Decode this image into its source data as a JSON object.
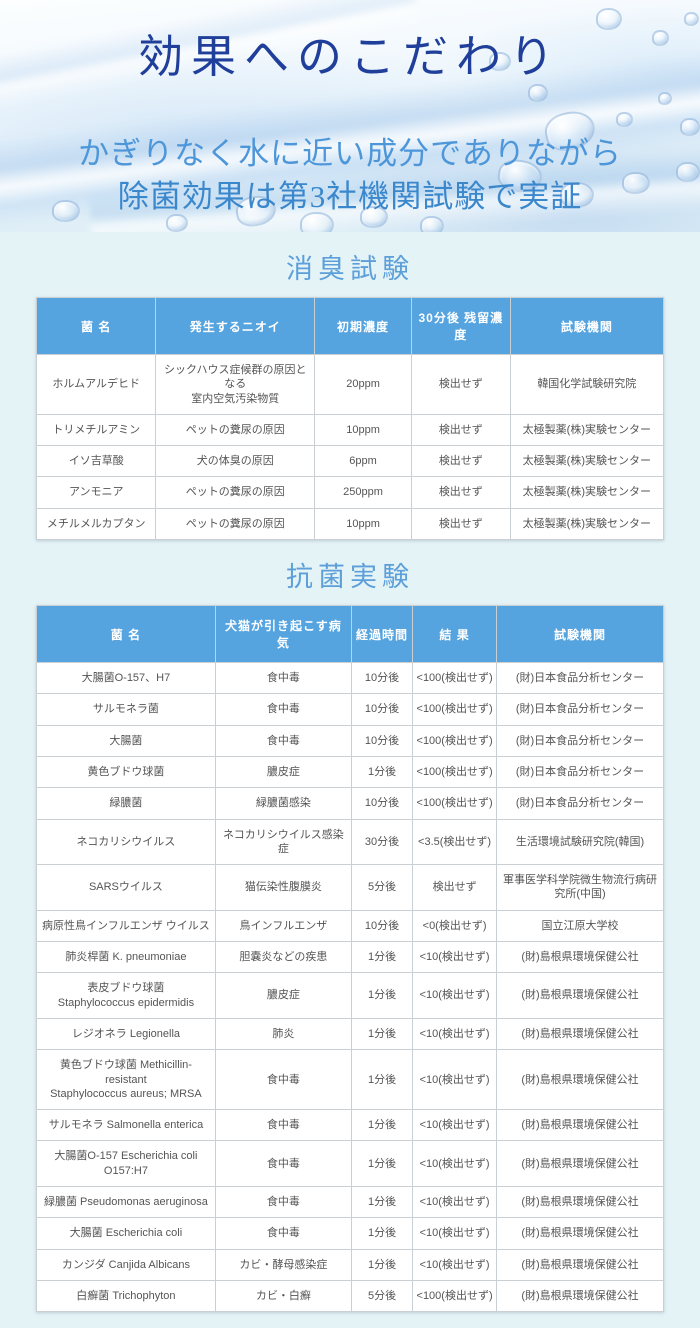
{
  "colors": {
    "header_bg": "#55a3df",
    "page_bg": "#e4f3f6",
    "title": "#1f3f9a",
    "subtitle1": "#4d96d9",
    "subtitle2": "#3b87cc",
    "section_heading": "#5c9fd9",
    "cell_text": "#555555",
    "border": "#c9cfd3"
  },
  "hero": {
    "title": "効果へのこだわり",
    "subtitle_line1": "かぎりなく水に近い成分でありながら",
    "subtitle_line2": "除菌効果は第3社機関試験で実証"
  },
  "deodorization": {
    "heading": "消臭試験",
    "table": {
      "headers": [
        "菌 名",
        "発生するニオイ",
        "初期濃度",
        "30分後 残留濃度",
        "試験機関"
      ],
      "rows": [
        [
          "ホルムアルデヒド",
          "シックハウス症候群の原因となる\n室内空気汚染物質",
          "20ppm",
          "検出せず",
          "韓国化学試験研究院"
        ],
        [
          "トリメチルアミン",
          "ペットの糞尿の原因",
          "10ppm",
          "検出せず",
          "太極製薬(株)実験センター"
        ],
        [
          "イソ吉草酸",
          "犬の体臭の原因",
          "6ppm",
          "検出せず",
          "太極製薬(株)実験センター"
        ],
        [
          "アンモニア",
          "ペットの糞尿の原因",
          "250ppm",
          "検出せず",
          "太極製薬(株)実験センター"
        ],
        [
          "メチルメルカプタン",
          "ペットの糞尿の原因",
          "10ppm",
          "検出せず",
          "太極製薬(株)実験センター"
        ]
      ]
    }
  },
  "antibacterial": {
    "heading": "抗菌実験",
    "table": {
      "headers": [
        "菌 名",
        "犬猫が引き起こす病気",
        "経過時間",
        "結 果",
        "試験機関"
      ],
      "rows": [
        [
          "大腸菌O-157、H7",
          "食中毒",
          "10分後",
          "<100(検出せず)",
          "(財)日本食品分析センター"
        ],
        [
          "サルモネラ菌",
          "食中毒",
          "10分後",
          "<100(検出せず)",
          "(財)日本食品分析センター"
        ],
        [
          "大腸菌",
          "食中毒",
          "10分後",
          "<100(検出せず)",
          "(財)日本食品分析センター"
        ],
        [
          "黄色ブドウ球菌",
          "膿皮症",
          "1分後",
          "<100(検出せず)",
          "(財)日本食品分析センター"
        ],
        [
          "緑膿菌",
          "緑膿菌感染",
          "10分後",
          "<100(検出せず)",
          "(財)日本食品分析センター"
        ],
        [
          "ネコカリシウイルス",
          "ネコカリシウイルス感染症",
          "30分後",
          "<3.5(検出せず)",
          "生活環境試験研究院(韓国)"
        ],
        [
          "SARSウイルス",
          "猫伝染性腹膜炎",
          "5分後",
          "検出せず",
          "軍事医学科学院微生物流行病研究所(中国)"
        ],
        [
          "病原性鳥インフルエンザ ウイルス",
          "鳥インフルエンザ",
          "10分後",
          "<0(検出せず)",
          "国立江原大学校"
        ],
        [
          "肺炎桿菌 K. pneumoniae",
          "胆嚢炎などの疾患",
          "1分後",
          "<10(検出せず)",
          "(財)島根県環境保健公社"
        ],
        [
          "表皮ブドウ球菌\nStaphylococcus epidermidis",
          "膿皮症",
          "1分後",
          "<10(検出せず)",
          "(財)島根県環境保健公社"
        ],
        [
          "レジオネラ Legionella",
          "肺炎",
          "1分後",
          "<10(検出せず)",
          "(財)島根県環境保健公社"
        ],
        [
          "黄色ブドウ球菌 Methicillin-resistant\nStaphylococcus aureus; MRSA",
          "食中毒",
          "1分後",
          "<10(検出せず)",
          "(財)島根県環境保健公社"
        ],
        [
          "サルモネラ Salmonella enterica",
          "食中毒",
          "1分後",
          "<10(検出せず)",
          "(財)島根県環境保健公社"
        ],
        [
          "大腸菌O-157 Escherichia coli O157:H7",
          "食中毒",
          "1分後",
          "<10(検出せず)",
          "(財)島根県環境保健公社"
        ],
        [
          "緑膿菌 Pseudomonas aeruginosa",
          "食中毒",
          "1分後",
          "<10(検出せず)",
          "(財)島根県環境保健公社"
        ],
        [
          "大腸菌 Escherichia coli",
          "食中毒",
          "1分後",
          "<10(検出せず)",
          "(財)島根県環境保健公社"
        ],
        [
          "カンジダ Canjida Albicans",
          "カビ・酵母感染症",
          "1分後",
          "<10(検出せず)",
          "(財)島根県環境保健公社"
        ],
        [
          "白癬菌 Trichophyton",
          "カビ・白癬",
          "5分後",
          "<100(検出せず)",
          "(財)島根県環境保健公社"
        ]
      ]
    }
  }
}
